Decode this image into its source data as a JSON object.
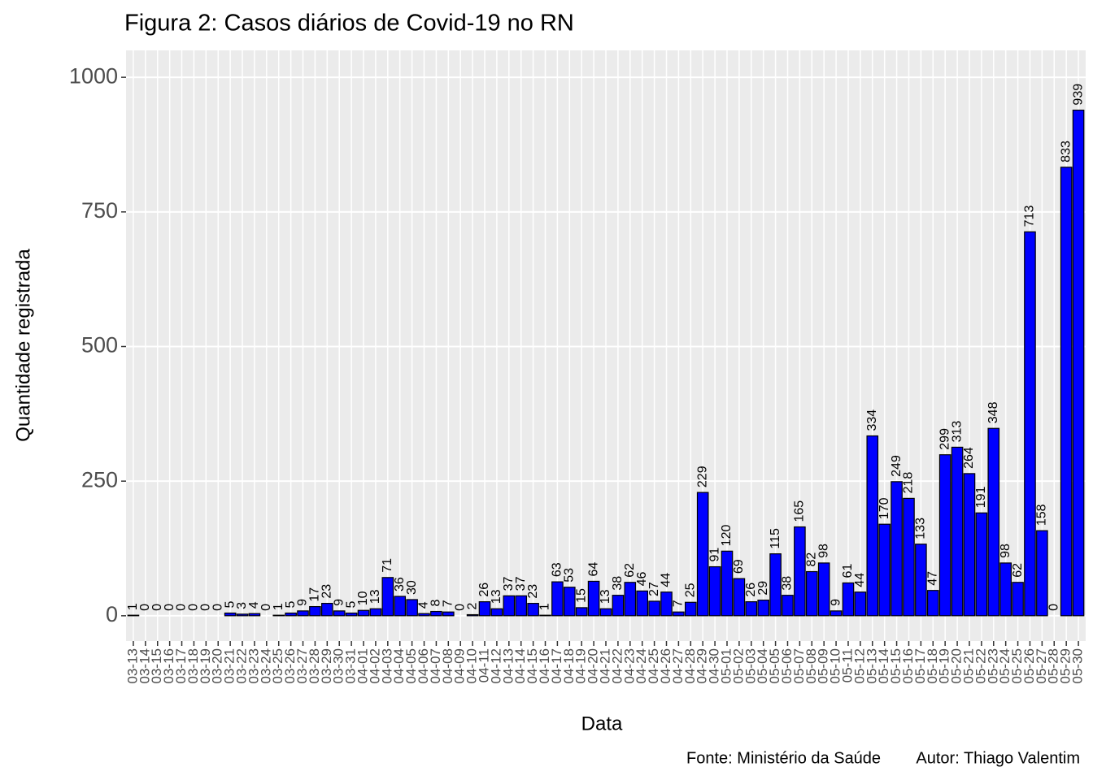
{
  "chart_data": {
    "type": "bar",
    "title": "Figura 2: Casos diários de Covid-19 no RN",
    "x_label": "Data",
    "y_label": "Quantidade registrada",
    "caption": "Fonte: Ministério da Saúde        Autor: Thiago Valentim",
    "categories": [
      "03-13",
      "03-14",
      "03-15",
      "03-16",
      "03-17",
      "03-18",
      "03-19",
      "03-20",
      "03-21",
      "03-22",
      "03-23",
      "03-24",
      "03-25",
      "03-26",
      "03-27",
      "03-28",
      "03-29",
      "03-30",
      "03-31",
      "04-01",
      "04-02",
      "04-03",
      "04-04",
      "04-05",
      "04-06",
      "04-07",
      "04-08",
      "04-09",
      "04-10",
      "04-11",
      "04-12",
      "04-13",
      "04-14",
      "04-15",
      "04-16",
      "04-17",
      "04-18",
      "04-19",
      "04-20",
      "04-21",
      "04-22",
      "04-23",
      "04-24",
      "04-25",
      "04-26",
      "04-27",
      "04-28",
      "04-29",
      "04-30",
      "05-01",
      "05-02",
      "05-03",
      "05-04",
      "05-05",
      "05-06",
      "05-07",
      "05-08",
      "05-09",
      "05-10",
      "05-11",
      "05-12",
      "05-13",
      "05-14",
      "05-15",
      "05-16",
      "05-17",
      "05-18",
      "05-19",
      "05-20",
      "05-21",
      "05-22",
      "05-23",
      "05-24",
      "05-25",
      "05-26",
      "05-27",
      "05-28",
      "05-29",
      "05-30"
    ],
    "values": [
      1,
      0,
      0,
      0,
      0,
      0,
      0,
      0,
      5,
      3,
      4,
      0,
      1,
      5,
      9,
      17,
      23,
      9,
      5,
      10,
      13,
      71,
      36,
      30,
      4,
      8,
      7,
      0,
      2,
      26,
      13,
      37,
      37,
      23,
      1,
      63,
      53,
      15,
      64,
      13,
      38,
      62,
      46,
      27,
      44,
      7,
      25,
      229,
      91,
      120,
      69,
      26,
      29,
      115,
      38,
      165,
      82,
      98,
      9,
      61,
      44,
      334,
      170,
      249,
      218,
      133,
      47,
      299,
      313,
      264,
      191,
      348,
      98,
      62,
      713,
      158,
      0,
      833,
      939
    ],
    "color": "#0000FF",
    "ylim": [
      -47,
      1050
    ],
    "yticks": [
      0,
      250,
      500,
      750,
      1000
    ],
    "grid": true
  }
}
